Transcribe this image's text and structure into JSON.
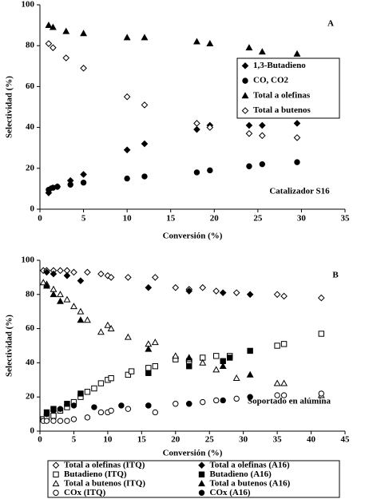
{
  "chart_data": [
    {
      "type": "scatter",
      "x_label": "Conversión (%)",
      "y_label": "Selectividad (%)",
      "annotations": [
        "A",
        "Catalizador S16"
      ],
      "legend": "upper right",
      "xlim": [
        0,
        35
      ],
      "xticks": [
        0,
        5,
        10,
        15,
        20,
        25,
        30,
        35
      ],
      "ylim": [
        0,
        100
      ],
      "yticks": [
        0,
        20,
        40,
        60,
        80,
        100
      ],
      "series": [
        {
          "name": "1,3-Butadieno",
          "color": "#000000",
          "marker": "diamond",
          "filled": true,
          "x": [
            1,
            1.2,
            2,
            3.5,
            5,
            10,
            12,
            18,
            19.5,
            24,
            25.5,
            29.5
          ],
          "values": [
            8,
            10,
            11,
            14,
            17,
            29,
            32,
            39,
            41,
            41,
            41,
            42
          ]
        },
        {
          "name": "CO, CO2",
          "color": "#000000",
          "marker": "circle",
          "filled": true,
          "x": [
            1,
            1.5,
            2,
            3.5,
            5,
            10,
            12,
            18,
            19.5,
            24,
            25.5,
            29.5
          ],
          "values": [
            9.5,
            10.5,
            11,
            12,
            13,
            15,
            16,
            18,
            19,
            21,
            22,
            23
          ]
        },
        {
          "name": "Total a olefinas",
          "color": "#000000",
          "marker": "triangle",
          "filled": true,
          "x": [
            1,
            1.5,
            3,
            5,
            10,
            12,
            18,
            19.5,
            24,
            25.5,
            29.5
          ],
          "values": [
            90,
            89,
            87,
            86,
            84,
            84,
            82,
            81,
            79,
            77,
            76
          ]
        },
        {
          "name": "Total a butenos",
          "color": "#000000",
          "marker": "diamond",
          "filled": false,
          "x": [
            1,
            1.5,
            3,
            5,
            10,
            12,
            18,
            19.5,
            24,
            25.5,
            29.5
          ],
          "values": [
            81,
            79,
            74,
            69,
            55,
            51,
            42,
            40,
            37,
            36,
            35
          ]
        }
      ]
    },
    {
      "type": "scatter",
      "x_label": "Conversión (%)",
      "y_label": "Selectividad (%)",
      "annotations": [
        "B",
        "Soportado en alúmina"
      ],
      "legend": "below",
      "xlim": [
        0,
        45
      ],
      "xticks": [
        0,
        5,
        10,
        15,
        20,
        25,
        30,
        35,
        40,
        45
      ],
      "ylim": [
        0,
        100
      ],
      "yticks": [
        0,
        20,
        40,
        60,
        80,
        100
      ],
      "series": [
        {
          "name": "Total a olefinas (ITQ)",
          "color": "#000000",
          "marker": "diamond",
          "filled": false,
          "x": [
            0.5,
            1,
            2,
            3,
            4,
            5,
            7,
            9,
            10,
            10.5,
            13,
            17,
            20,
            22,
            24,
            26,
            29,
            35,
            36,
            41.5
          ],
          "values": [
            94,
            94,
            94,
            94,
            94,
            93,
            93,
            92,
            91,
            90,
            90,
            90,
            84,
            83,
            84,
            82,
            81,
            80,
            79,
            78
          ]
        },
        {
          "name": "Total a olefinas (A16)",
          "color": "#000000",
          "marker": "diamond",
          "filled": true,
          "x": [
            1,
            2,
            4,
            6,
            16,
            22,
            27,
            31
          ],
          "values": [
            93,
            92,
            91,
            88,
            84,
            82,
            81,
            80
          ]
        },
        {
          "name": "Butadieno (ITQ)",
          "color": "#000000",
          "marker": "square",
          "filled": false,
          "x": [
            0.5,
            1,
            2,
            3,
            4,
            5,
            6,
            7,
            8,
            9,
            10,
            10.5,
            13,
            13.5,
            16,
            17,
            20,
            22,
            24,
            26,
            28,
            35,
            36,
            41.5
          ],
          "values": [
            7,
            8,
            9,
            12,
            14,
            17,
            20,
            23,
            25,
            28,
            30,
            31,
            33,
            35,
            37,
            38,
            42,
            41,
            43,
            44,
            44,
            50,
            51,
            57
          ]
        },
        {
          "name": "Butadieno (A16)",
          "color": "#000000",
          "marker": "square",
          "filled": true,
          "x": [
            1,
            2,
            4,
            6,
            16,
            22,
            27,
            28,
            31
          ],
          "values": [
            11,
            13,
            16,
            22,
            34,
            38,
            41,
            43,
            47
          ]
        },
        {
          "name": "Total a butenos (ITQ)",
          "color": "#000000",
          "marker": "triangle",
          "filled": false,
          "x": [
            0.5,
            1,
            2,
            3,
            4,
            5,
            6,
            7,
            9,
            10,
            10.5,
            13,
            16,
            17,
            20,
            22,
            24,
            26,
            29,
            35,
            36,
            41.5
          ],
          "values": [
            87,
            86,
            83,
            80,
            77,
            73,
            70,
            65,
            58,
            62,
            60,
            55,
            51,
            52,
            44,
            42,
            40,
            36,
            31,
            28,
            28,
            21
          ]
        },
        {
          "name": "Total a butenos (A16)",
          "color": "#000000",
          "marker": "triangle",
          "filled": true,
          "x": [
            1,
            2,
            3,
            6,
            16,
            22,
            27,
            31
          ],
          "values": [
            85,
            80,
            76,
            65,
            48,
            43,
            38,
            33
          ]
        },
        {
          "name": "COx (ITQ)",
          "color": "#000000",
          "marker": "circle",
          "filled": false,
          "x": [
            0.5,
            1,
            2,
            3,
            4,
            5,
            7,
            9,
            10,
            10.5,
            13,
            16,
            17,
            20,
            22,
            24,
            26,
            29,
            35,
            36,
            41.5
          ],
          "values": [
            6,
            6,
            6,
            6,
            6,
            7,
            8,
            11,
            11,
            12,
            13,
            15,
            11,
            16,
            16,
            17,
            18,
            19,
            21,
            21,
            22
          ]
        },
        {
          "name": "COx (A16)",
          "color": "#000000",
          "marker": "circle",
          "filled": true,
          "x": [
            1,
            2,
            3,
            5,
            8,
            12,
            16,
            22,
            27,
            31
          ],
          "values": [
            10,
            12,
            13,
            15,
            14,
            15,
            15,
            16,
            18,
            20
          ]
        }
      ]
    }
  ]
}
